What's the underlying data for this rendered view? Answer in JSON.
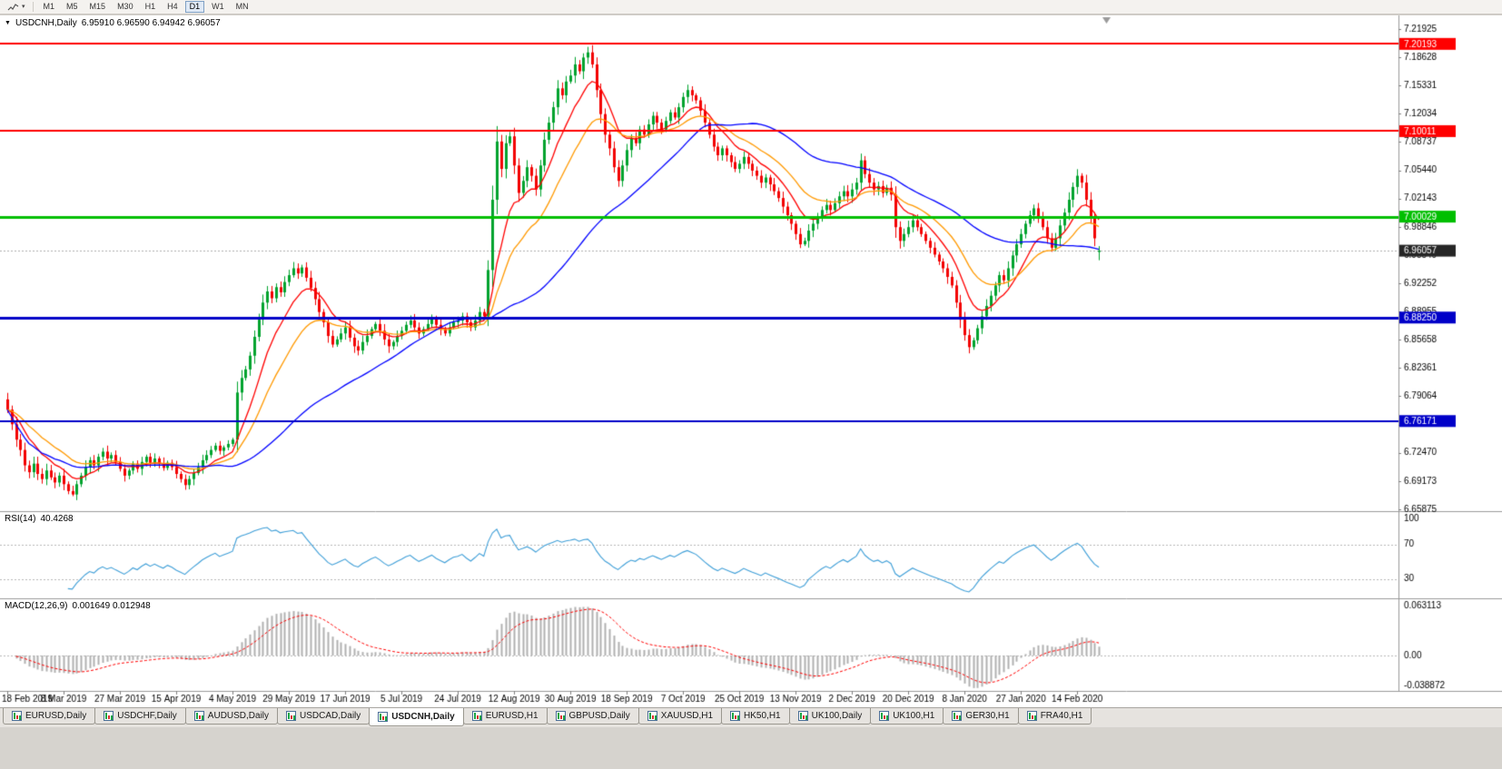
{
  "toolbar": {
    "timeframes": [
      "M1",
      "M5",
      "M15",
      "M30",
      "H1",
      "H4",
      "D1",
      "W1",
      "MN"
    ],
    "active_timeframe": "D1"
  },
  "main_chart": {
    "collapse_arrow": "▼",
    "symbol_period": "USDCNH,Daily",
    "ohlc_text": "6.95910 6.96590 6.94942 6.96057"
  },
  "rsi_label": {
    "name": "RSI(14)",
    "value": "40.4268"
  },
  "macd_label": {
    "name": "MACD(12,26,9)",
    "values": "0.001649 0.012948"
  },
  "tabs": {
    "items": [
      "EURUSD,Daily",
      "USDCHF,Daily",
      "AUDUSD,Daily",
      "USDCAD,Daily",
      "USDCNH,Daily",
      "EURUSD,H1",
      "GBPUSD,Daily",
      "XAUUSD,H1",
      "HK50,H1",
      "UK100,Daily",
      "UK100,H1",
      "GER30,H1",
      "FRA40,H1"
    ],
    "active": "USDCNH,Daily"
  },
  "chart_data": {
    "type": "candlestick",
    "title": "USDCNH,Daily",
    "symbol": "USDCNH",
    "period": "Daily",
    "x_labels": [
      "18 Feb 2019",
      "8 Mar 2019",
      "27 Mar 2019",
      "15 Apr 2019",
      "4 May 2019",
      "29 May 2019",
      "17 Jun 2019",
      "5 Jul 2019",
      "24 Jul 2019",
      "12 Aug 2019",
      "30 Aug 2019",
      "18 Sep 2019",
      "7 Oct 2019",
      "25 Oct 2019",
      "13 Nov 2019",
      "2 Dec 2019",
      "20 Dec 2019",
      "8 Jan 2020",
      "27 Jan 2020",
      "14 Feb 2020"
    ],
    "candles_per_label": 13,
    "ylim": [
      6.65655,
      7.23515
    ],
    "price_axis_labels": [
      "7.21925",
      "7.18628",
      "7.15331",
      "7.12034",
      "7.08737",
      "7.05440",
      "7.02143",
      "6.98846",
      "6.95549",
      "6.92252",
      "6.88955",
      "6.85658",
      "6.82361",
      "6.79064",
      "6.75767",
      "6.72470",
      "6.69173",
      "6.65875"
    ],
    "closes": [
      6.775,
      6.758,
      6.74,
      6.728,
      6.71,
      6.702,
      6.712,
      6.7,
      6.694,
      6.704,
      6.696,
      6.69,
      6.698,
      6.688,
      6.68,
      6.676,
      6.688,
      6.698,
      6.708,
      6.716,
      6.71,
      6.72,
      6.726,
      6.718,
      6.722,
      6.714,
      6.706,
      6.698,
      6.704,
      6.712,
      6.706,
      6.714,
      6.72,
      6.713,
      6.718,
      6.712,
      6.707,
      6.713,
      6.708,
      6.7,
      6.694,
      6.687,
      6.694,
      6.701,
      6.708,
      6.716,
      6.722,
      6.728,
      6.733,
      6.727,
      6.731,
      6.735,
      6.74,
      6.795,
      6.812,
      6.822,
      6.838,
      6.86,
      6.88,
      6.9,
      6.913,
      6.905,
      6.918,
      6.912,
      6.924,
      6.932,
      6.94,
      6.934,
      6.941,
      6.929,
      6.917,
      6.904,
      6.889,
      6.877,
      6.861,
      6.851,
      6.857,
      6.864,
      6.871,
      6.859,
      6.849,
      6.844,
      6.854,
      6.861,
      6.869,
      6.875,
      6.867,
      6.857,
      6.849,
      6.854,
      6.861,
      6.867,
      6.874,
      6.879,
      6.871,
      6.864,
      6.869,
      6.875,
      6.881,
      6.874,
      6.869,
      6.864,
      6.871,
      6.877,
      6.879,
      6.884,
      6.877,
      6.871,
      6.879,
      6.889,
      6.884,
      6.938,
      7.02,
      7.088,
      7.056,
      7.086,
      7.094,
      7.06,
      7.028,
      7.042,
      7.058,
      7.048,
      7.032,
      7.06,
      7.09,
      7.11,
      7.128,
      7.15,
      7.142,
      7.158,
      7.165,
      7.178,
      7.17,
      7.186,
      7.192,
      7.178,
      7.148,
      7.12,
      7.096,
      7.08,
      7.058,
      7.042,
      7.06,
      7.078,
      7.092,
      7.086,
      7.102,
      7.096,
      7.108,
      7.118,
      7.11,
      7.102,
      7.112,
      7.122,
      7.116,
      7.128,
      7.14,
      7.148,
      7.142,
      7.136,
      7.124,
      7.11,
      7.096,
      7.082,
      7.072,
      7.08,
      7.072,
      7.064,
      7.056,
      7.062,
      7.07,
      7.062,
      7.054,
      7.048,
      7.04,
      7.046,
      7.038,
      7.03,
      7.022,
      7.012,
      7.002,
      6.992,
      6.98,
      6.968,
      6.972,
      6.984,
      6.992,
      7.0,
      7.008,
      7.014,
      7.008,
      7.016,
      7.024,
      7.03,
      7.024,
      7.032,
      7.04,
      7.066,
      7.05,
      7.04,
      7.032,
      7.036,
      7.028,
      7.034,
      7.026,
      6.988,
      6.972,
      6.98,
      6.988,
      6.996,
      6.988,
      6.98,
      6.972,
      6.964,
      6.956,
      6.948,
      6.94,
      6.93,
      6.92,
      6.9,
      6.88,
      6.862,
      6.848,
      6.856,
      6.87,
      6.884,
      6.896,
      6.908,
      6.92,
      6.932,
      6.926,
      6.94,
      6.955,
      6.968,
      6.98,
      6.992,
      7.002,
      7.01,
      7.0,
      6.988,
      6.975,
      6.964,
      6.975,
      6.99,
      7.005,
      7.02,
      7.035,
      7.048,
      7.04,
      7.02,
      6.998,
      6.975,
      6.9606
    ],
    "last_candle": {
      "open": 6.9591,
      "high": 6.9659,
      "low": 6.94942,
      "close": 6.96057
    },
    "candle_colors": {
      "up": "#00a32e",
      "down": "#f30000"
    },
    "horizontal_lines": [
      {
        "price": 7.20193,
        "label": "7.20193",
        "color": "#ff0000",
        "width": 2
      },
      {
        "price": 7.10011,
        "label": "7.10011",
        "color": "#ff0000",
        "width": 2
      },
      {
        "price": 7.00029,
        "label": "7.00029",
        "color": "#00bf00",
        "width": 3
      },
      {
        "price": 6.8825,
        "label": "6.88250",
        "color": "#0000c8",
        "width": 3
      },
      {
        "price": 6.76171,
        "label": "6.76171",
        "color": "#0000c8",
        "width": 2
      }
    ],
    "current_price": {
      "value": 6.96057,
      "label": "6.96057",
      "tag_color": "#262626",
      "line_color": "#b0b0b0"
    },
    "moving_averages": [
      {
        "period": 10,
        "method": "ema",
        "color": "#ff0000"
      },
      {
        "period": 21,
        "method": "ema",
        "color": "#ff9900"
      },
      {
        "period": 50,
        "method": "sma",
        "color": "#0000ff"
      }
    ],
    "rsi_indicator": {
      "period": 14,
      "value": 40.4268,
      "color": "#3f9fd8",
      "levels": [
        70,
        30
      ],
      "axis_labels": [
        "100",
        "70",
        "30"
      ]
    },
    "macd_indicator": {
      "fast": 12,
      "slow": 26,
      "signal": 9,
      "values": [
        0.001649,
        0.012948
      ],
      "hist_color": "#b0b0b0",
      "signal_color": "#ff0000",
      "axis_labels": [
        "0.063113",
        "0.00",
        "-0.038872"
      ]
    }
  }
}
